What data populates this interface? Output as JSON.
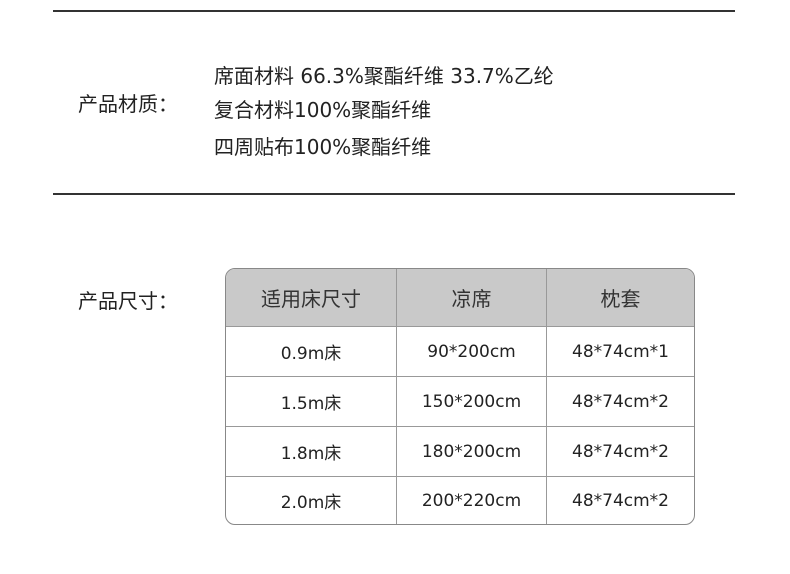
{
  "material": {
    "label": "产品材质：",
    "lines": [
      "席面材料 66.3%聚酯纤维 33.7%乙纶",
      "复合材料100%聚酯纤维",
      "四周贴布100%聚酯纤维"
    ]
  },
  "size": {
    "label": "产品尺寸：",
    "headers": [
      "适用床尺寸",
      "凉席",
      "枕套"
    ],
    "rows": [
      [
        "0.9m床",
        "90*200cm",
        "48*74cm*1"
      ],
      [
        "1.5m床",
        "150*200cm",
        "48*74cm*2"
      ],
      [
        "1.8m床",
        "180*200cm",
        "48*74cm*2"
      ],
      [
        "2.0m床",
        "200*220cm",
        "48*74cm*2"
      ]
    ]
  }
}
